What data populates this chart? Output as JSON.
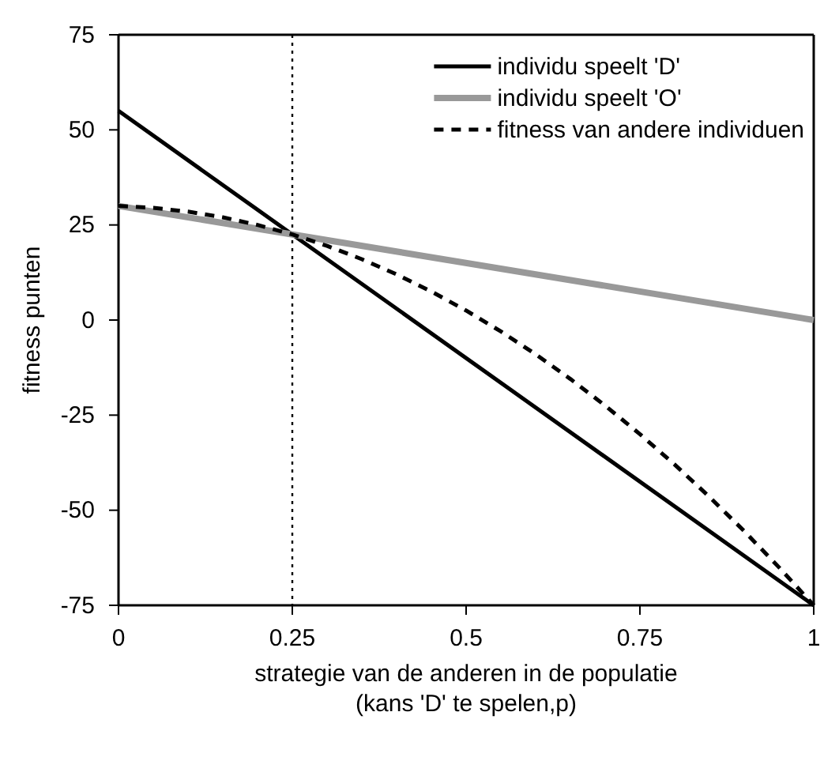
{
  "chart_data": {
    "type": "line",
    "xlabel": "strategie van de anderen in de populatie\n(kans 'D' te spelen,p)",
    "ylabel": "fitness punten",
    "xlim": [
      0,
      1
    ],
    "xticks": [
      0,
      0.25,
      0.5,
      0.75,
      1
    ],
    "ylim": [
      -75,
      75
    ],
    "yticks": [
      -75,
      -50,
      -25,
      0,
      25,
      50,
      75
    ],
    "grid": false,
    "legend": "top right",
    "marker": "none",
    "ref_lines": [
      {
        "axis": "x",
        "value": 0.25,
        "color": "#000000",
        "line_style": "dotted"
      }
    ],
    "series": [
      {
        "name": "individu speelt 'D'",
        "color": "#000000",
        "line_style": "solid",
        "x": [
          0,
          1
        ],
        "values": [
          55,
          -75
        ]
      },
      {
        "name": "individu speelt 'O'",
        "color": "#999999",
        "line_style": "solid",
        "x": [
          0,
          1
        ],
        "values": [
          30,
          0
        ]
      },
      {
        "name": "fitness van andere individuen",
        "color": "#000000",
        "line_style": "dashed",
        "x": [
          0,
          0.05,
          0.1,
          0.15,
          0.2,
          0.25,
          0.3,
          0.35,
          0.4,
          0.45,
          0.5,
          0.55,
          0.6,
          0.65,
          0.7,
          0.75,
          0.8,
          0.85,
          0.9,
          0.95,
          1
        ],
        "values": [
          30,
          29.5,
          28.5,
          27,
          25,
          22.5,
          19.5,
          16,
          12,
          7.5,
          2.5,
          -3,
          -9,
          -15.5,
          -22.5,
          -30,
          -38,
          -46.5,
          -55.5,
          -65,
          -75
        ]
      }
    ]
  }
}
